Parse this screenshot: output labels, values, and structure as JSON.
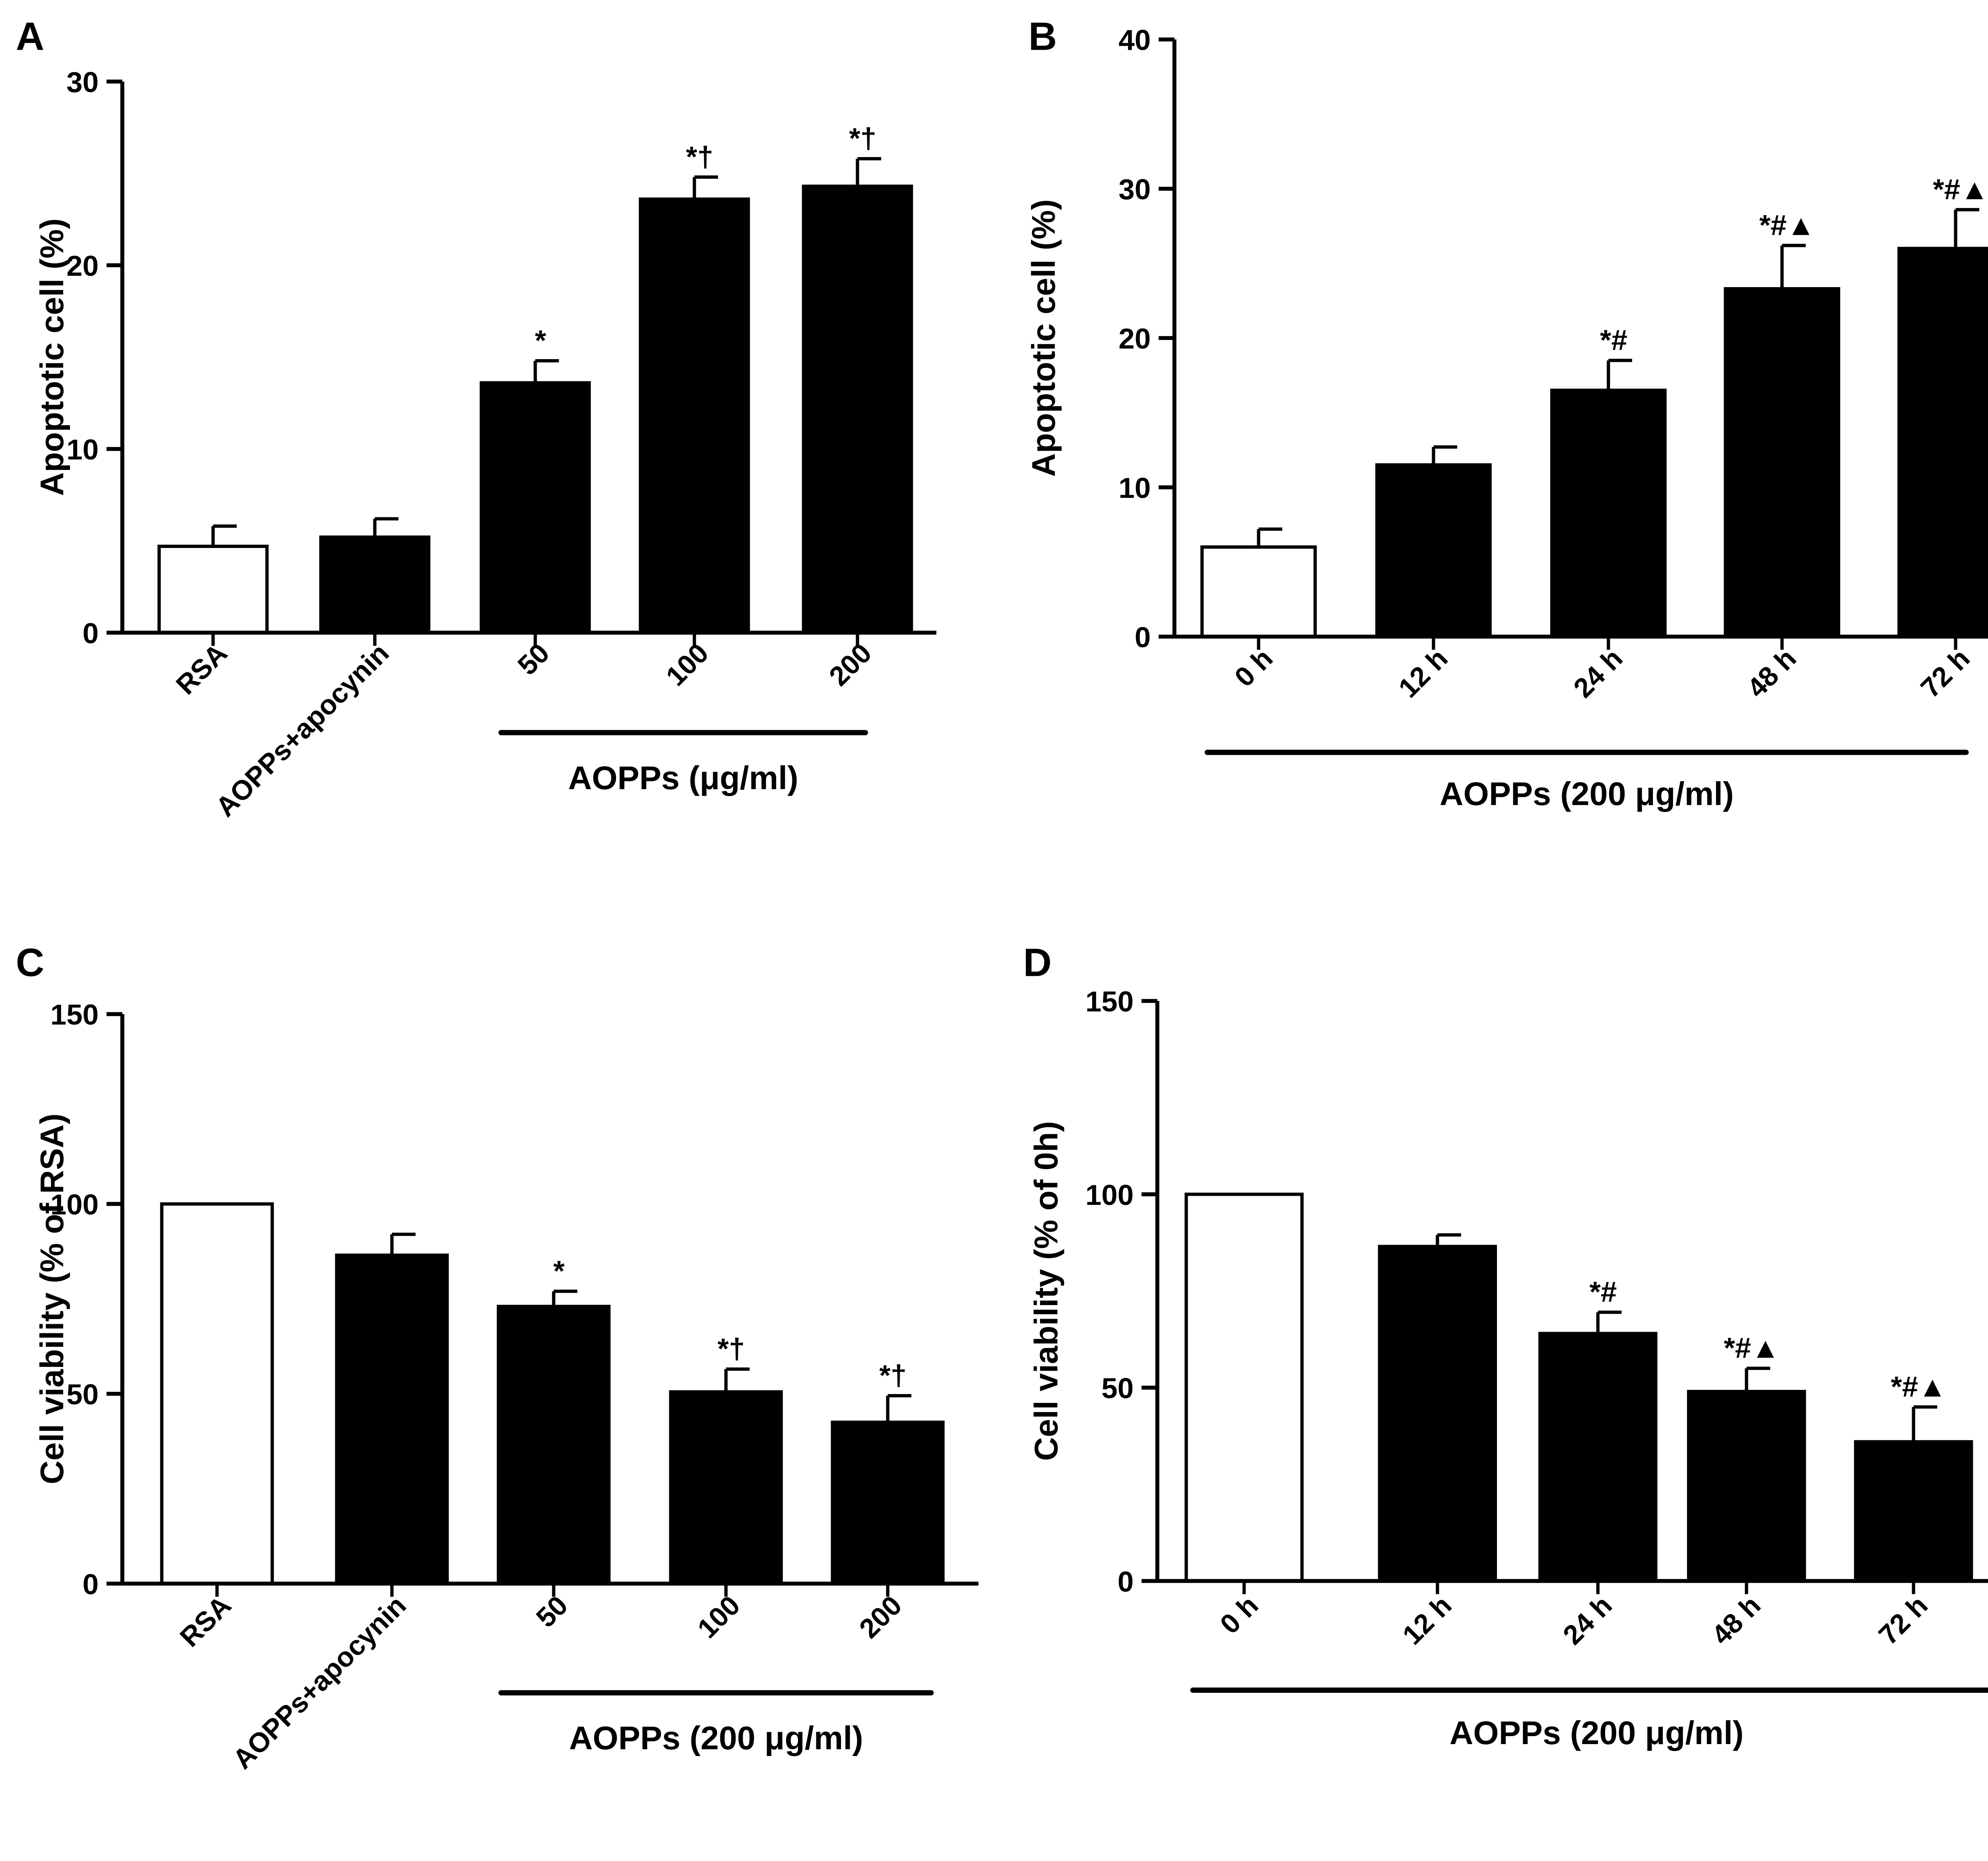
{
  "chart_data": [
    {
      "panel_label": "A",
      "type": "bar",
      "title": "",
      "ylabel": "Apoptotic cell (%)",
      "ylim": [
        0,
        30
      ],
      "yticks": [
        "0",
        "10",
        "20",
        "30"
      ],
      "categories": [
        "RSA",
        "AOPPs+apocynin",
        "50",
        "100",
        "200"
      ],
      "values": [
        4.7,
        5.2,
        13.6,
        23.6,
        24.3
      ],
      "errors": [
        1.1,
        1.0,
        1.2,
        1.2,
        1.5
      ],
      "fills": [
        "#ffffff",
        "#000000",
        "#000000",
        "#000000",
        "#000000"
      ],
      "annotations": [
        "",
        "",
        "*",
        "*†",
        "*†"
      ],
      "group_label": "AOPPs (μg/ml)",
      "group_span": [
        2,
        4
      ]
    },
    {
      "panel_label": "B",
      "type": "bar",
      "title": "",
      "ylabel": "Apoptotic cell (%)",
      "ylim": [
        0,
        40
      ],
      "yticks": [
        "0",
        "10",
        "20",
        "30",
        "40"
      ],
      "categories": [
        "0 h",
        "12 h",
        "24 h",
        "48 h",
        "72 h"
      ],
      "values": [
        6.0,
        11.5,
        16.5,
        23.3,
        26.0
      ],
      "errors": [
        1.2,
        1.2,
        2.0,
        2.9,
        2.6
      ],
      "fills": [
        "#ffffff",
        "#000000",
        "#000000",
        "#000000",
        "#000000"
      ],
      "annotations": [
        "",
        "",
        "*#",
        "*#▲",
        "*#▲"
      ],
      "group_label": "AOPPs (200 μg/ml)",
      "group_span": [
        0,
        4
      ]
    },
    {
      "panel_label": "C",
      "type": "bar",
      "title": "",
      "ylabel": "Cell viability (% of RSA)",
      "ylim": [
        0,
        150
      ],
      "yticks": [
        "0",
        "50",
        "100",
        "150"
      ],
      "categories": [
        "RSA",
        "AOPPs+apocynin",
        "50",
        "100",
        "200"
      ],
      "values": [
        100,
        86.5,
        73,
        50.5,
        42.5
      ],
      "errors": [
        0,
        5.5,
        4,
        6,
        7
      ],
      "fills": [
        "#ffffff",
        "#000000",
        "#000000",
        "#000000",
        "#000000"
      ],
      "annotations": [
        "",
        "",
        "*",
        "*†",
        "*†"
      ],
      "group_label": "AOPPs (200 μg/ml)",
      "group_span": [
        2,
        4
      ]
    },
    {
      "panel_label": "D",
      "type": "bar",
      "title": "",
      "ylabel": "Cell viability (% of 0h)",
      "ylim": [
        0,
        150
      ],
      "yticks": [
        "0",
        "50",
        "100",
        "150"
      ],
      "categories": [
        "0 h",
        "12 h",
        "24 h",
        "48 h",
        "72 h"
      ],
      "values": [
        100,
        86.5,
        64,
        49,
        36
      ],
      "errors": [
        0,
        3,
        5.5,
        6,
        9
      ],
      "fills": [
        "#ffffff",
        "#000000",
        "#000000",
        "#000000",
        "#000000"
      ],
      "annotations": [
        "",
        "",
        "*#",
        "*#▲",
        "*#▲"
      ],
      "group_label": "AOPPs (200 μg/ml)",
      "group_span": [
        0,
        4
      ]
    }
  ]
}
